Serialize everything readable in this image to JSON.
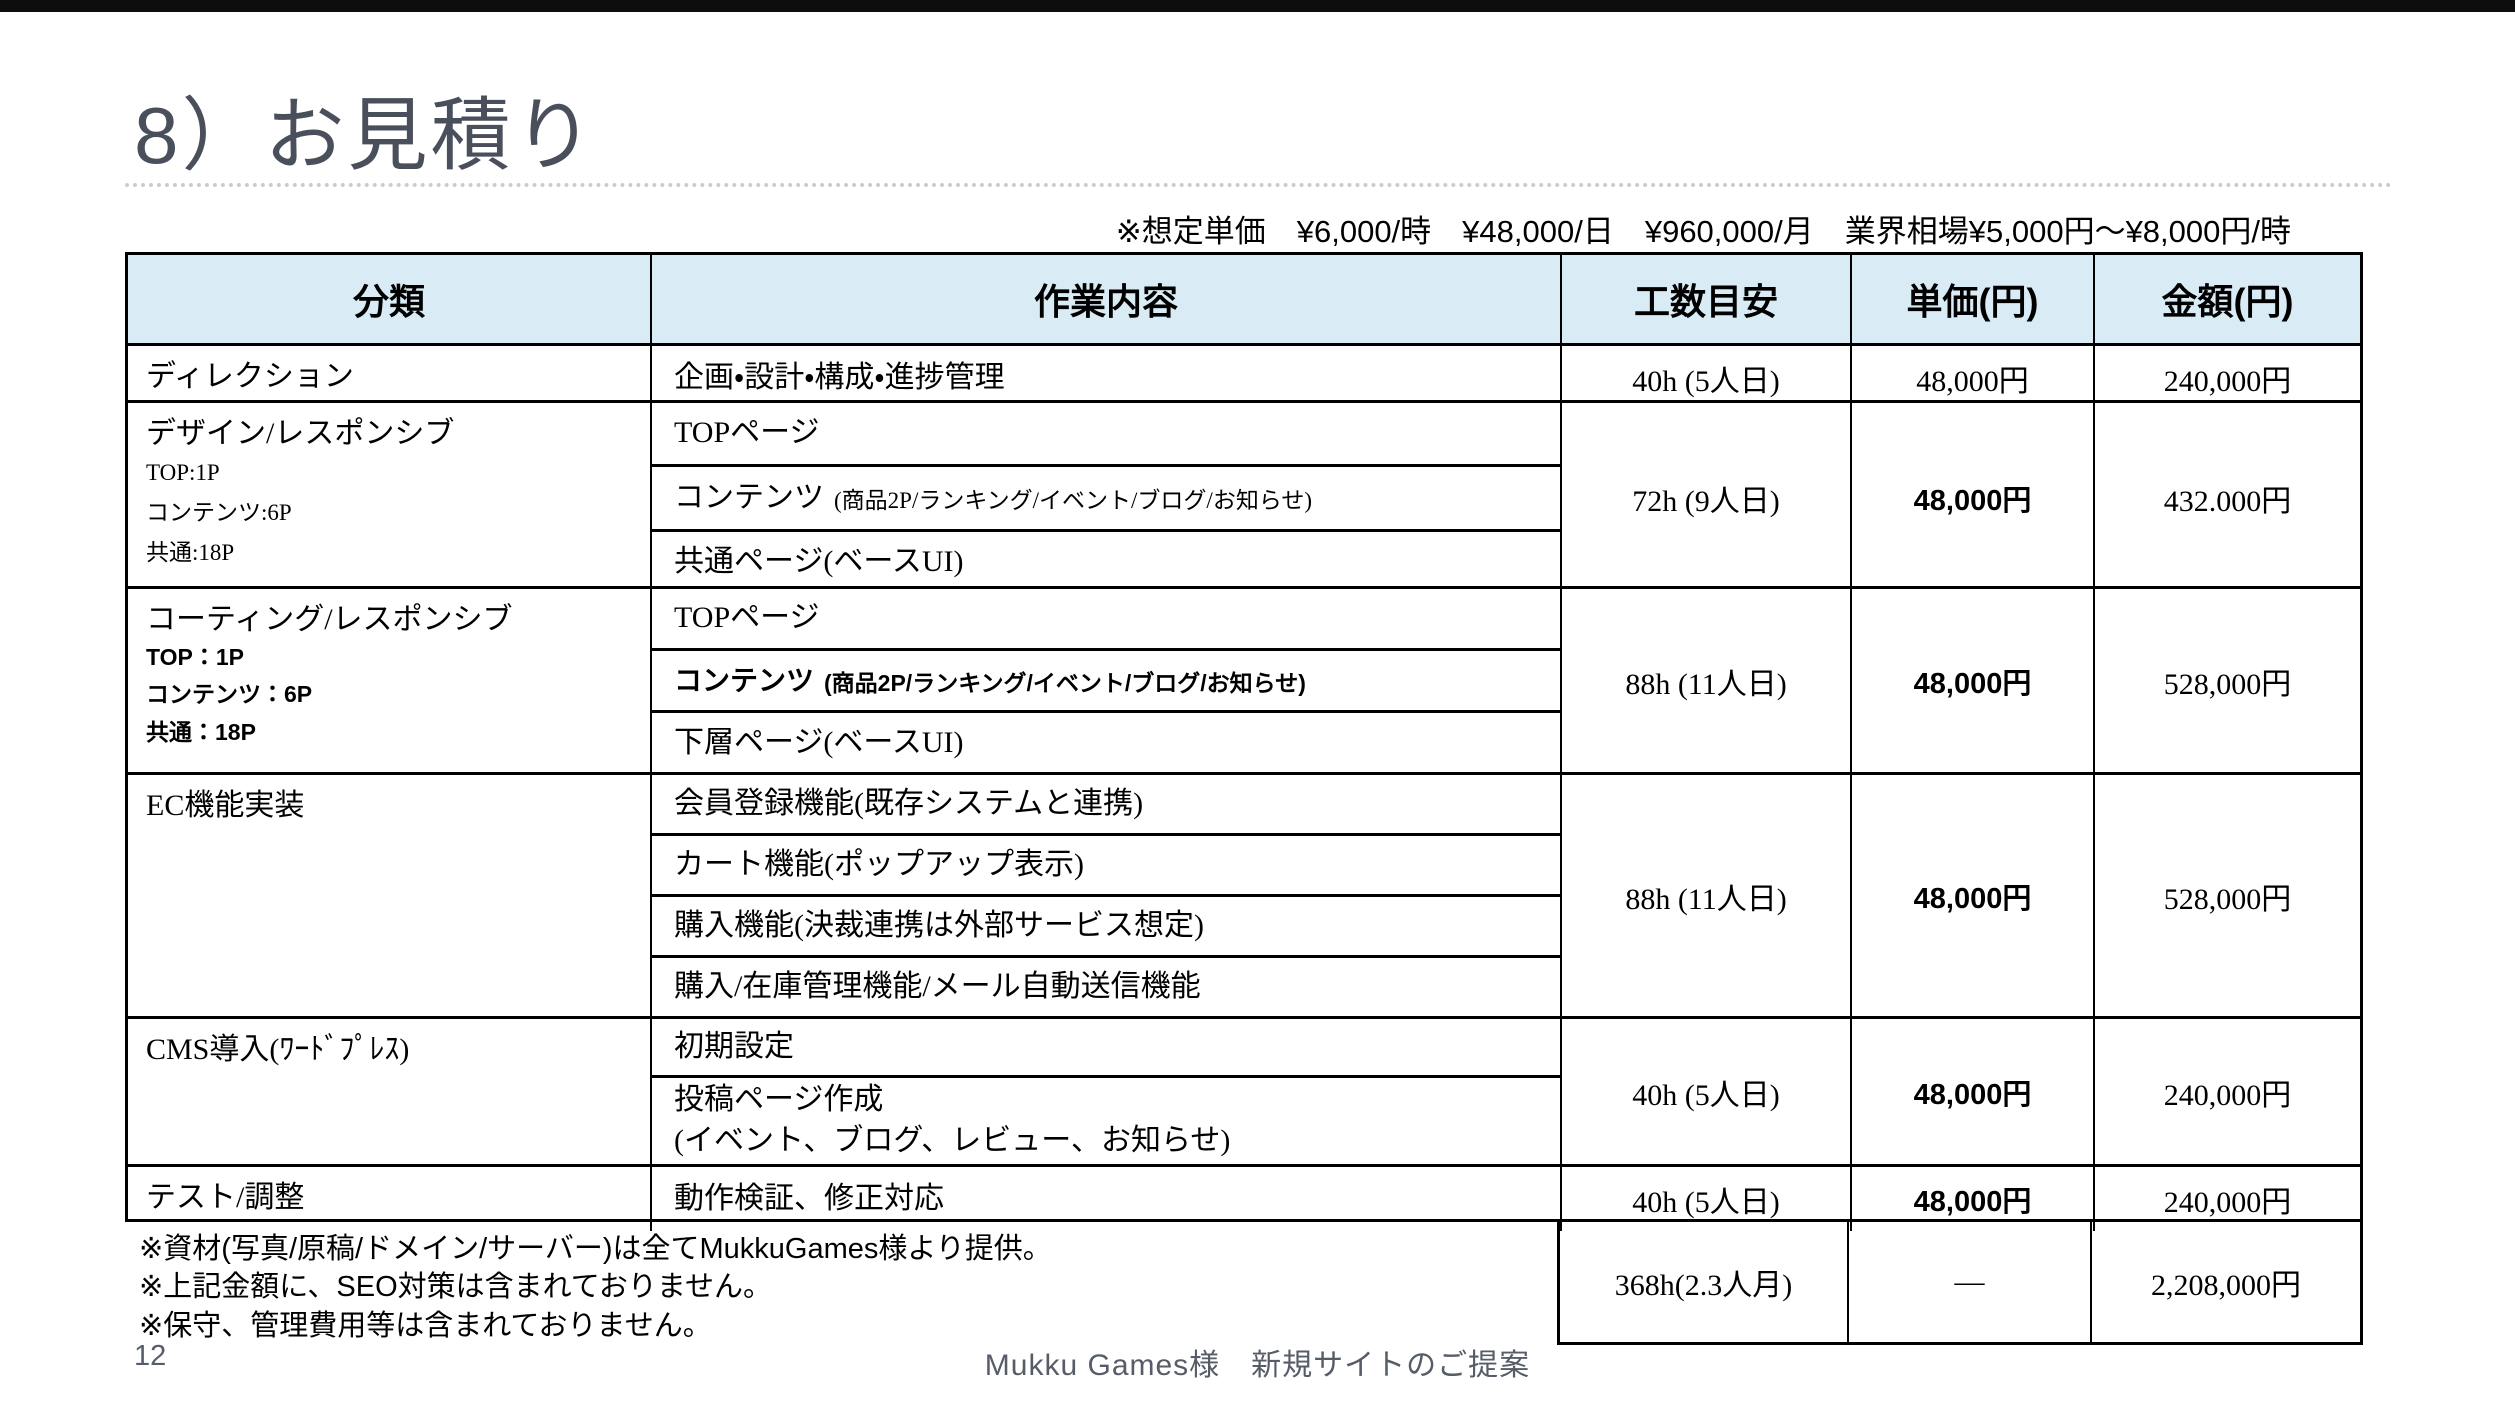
{
  "page": {
    "title": "8）お見積り",
    "page_number": "12",
    "footer_caption": "Mukku Games様　新規サイトのご提案"
  },
  "pricing_note": "※想定単価　¥6,000/時　¥48,000/日　¥960,000/月　業界相場¥5,000円～¥8,000円/時",
  "table": {
    "headers": [
      "分類",
      "作業内容",
      "工数目安",
      "単価(円)",
      "金額(円)"
    ],
    "rows": [
      {
        "category": "ディレクション",
        "category_sub": "",
        "category_sub_bold": false,
        "tasks": [
          {
            "text": "企画・設計・構成・進捗管理",
            "note": "",
            "bold": false
          }
        ],
        "hours": "40h (5人日)",
        "unit_price": "48,000円",
        "unit_price_bold": false,
        "amount": "240,000円"
      },
      {
        "category": "デザイン/レスポンシブ",
        "category_sub": "TOP:1P\nコンテンツ:6P\n共通:18P",
        "category_sub_bold": false,
        "tasks": [
          {
            "text": "TOPページ",
            "note": "",
            "bold": false
          },
          {
            "text": "コンテンツ",
            "note": "(商品2P/ランキング/イベント/ブログ/お知らせ)",
            "bold": false
          },
          {
            "text": "共通ページ(ベースUI)",
            "note": "",
            "bold": false
          }
        ],
        "hours": "72h (9人日)",
        "unit_price": "48,000円",
        "unit_price_bold": true,
        "amount": "432.000円"
      },
      {
        "category": "コーティング/レスポンシブ",
        "category_sub": "TOP：1P\nコンテンツ：6P\n共通：18P",
        "category_sub_bold": true,
        "tasks": [
          {
            "text": "TOPページ",
            "note": "",
            "bold": false
          },
          {
            "text": "コンテンツ",
            "note": "(商品2P/ランキング/イベント/ブログ/お知らせ)",
            "bold": true
          },
          {
            "text": "下層ページ(ベースUI)",
            "note": "",
            "bold": false
          }
        ],
        "hours": "88h (11人日)",
        "unit_price": "48,000円",
        "unit_price_bold": true,
        "amount": "528,000円"
      },
      {
        "category": "EC機能実装",
        "category_sub": "",
        "category_sub_bold": false,
        "tasks": [
          {
            "text": "会員登録機能(既存システムと連携)",
            "note": "",
            "bold": false
          },
          {
            "text": "カート機能(ポップアップ表示)",
            "note": "",
            "bold": false
          },
          {
            "text": "購入機能(決裁連携は外部サービス想定)",
            "note": "",
            "bold": false
          },
          {
            "text": "購入/在庫管理機能/メール自動送信機能",
            "note": "",
            "bold": false
          }
        ],
        "hours": "88h (11人日)",
        "unit_price": "48,000円",
        "unit_price_bold": true,
        "amount": "528,000円"
      },
      {
        "category": "CMS導入(ﾜｰﾄﾞﾌﾟﾚｽ)",
        "category_sub": "",
        "category_sub_bold": false,
        "tasks": [
          {
            "text": "初期設定",
            "note": "",
            "bold": false
          },
          {
            "text": "投稿ページ作成\n(イベント、ブログ、レビュー、お知らせ)",
            "note": "",
            "bold": false
          }
        ],
        "hours": "40h (5人日)",
        "unit_price": "48,000円",
        "unit_price_bold": true,
        "amount": "240,000円"
      },
      {
        "category": "テスト/調整",
        "category_sub": "",
        "category_sub_bold": false,
        "tasks": [
          {
            "text": "動作検証、修正対応",
            "note": "",
            "bold": false
          }
        ],
        "hours": "40h (5人日)",
        "unit_price": "48,000円",
        "unit_price_bold": true,
        "amount": "240,000円"
      }
    ],
    "summary": {
      "notes": [
        "※資材(写真/原稿/ドメイン/サーバー)は全てMukkuGames様より提供。",
        "※上記金額に、SEO対策は含まれておりません。",
        "※保守、管理費用等は含まれておりません。"
      ],
      "hours": "368h(2.3人月)",
      "unit_price": "―",
      "amount": "2,208,000円"
    }
  },
  "colors": {
    "header_bg": "#d9ecf6",
    "border": "#000000",
    "title_text": "#494f5b",
    "footer_text": "#565c68",
    "topbar": "#0d0d0d"
  }
}
